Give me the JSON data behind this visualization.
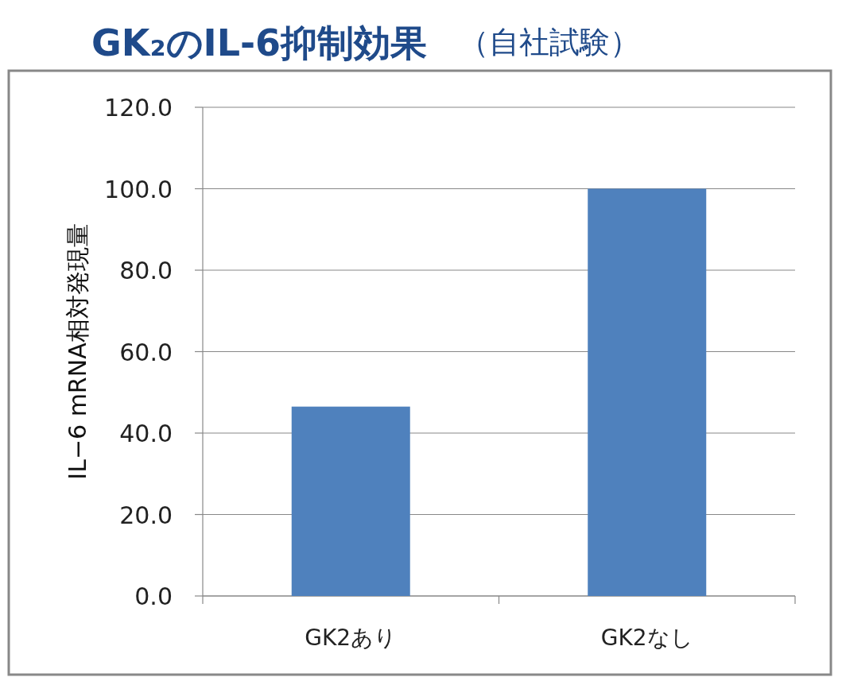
{
  "chart_data": {
    "type": "bar",
    "title": "GK₂のIL-6抑制効果",
    "subtitle": "（自社試験）",
    "ylabel": "IL−6 mRNA相対発現量",
    "categories": [
      "GK2あり",
      "GK2なし"
    ],
    "values": [
      46.5,
      100.0
    ],
    "color": "#4f81bd",
    "ylim": [
      0,
      120
    ],
    "yticks": [
      {
        "value": 0,
        "label": "0.0"
      },
      {
        "value": 20,
        "label": "20.0"
      },
      {
        "value": 40,
        "label": "40.0"
      },
      {
        "value": 60,
        "label": "60.0"
      },
      {
        "value": 80,
        "label": "80.0"
      },
      {
        "value": 100,
        "label": "100.0"
      },
      {
        "value": 120,
        "label": "120.0"
      }
    ],
    "grid": "y"
  }
}
